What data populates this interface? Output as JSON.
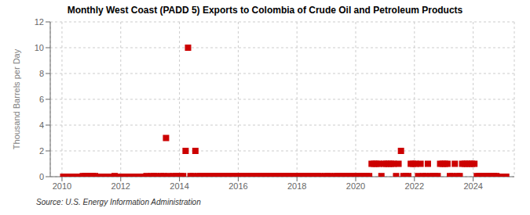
{
  "chart_data": {
    "type": "scatter",
    "title": "Monthly West Coast (PADD 5) Exports to Colombia of Crude Oil and Petroleum Products",
    "ylabel": "Thousand Barrels per Day",
    "annotations": [
      "Source: U.S. Energy Information Administration"
    ],
    "color": "#cc0000",
    "marker": "square",
    "grid": true,
    "xlim": [
      2009.6,
      2025.4
    ],
    "xticks": [
      2010,
      2012,
      2014,
      2016,
      2018,
      2020,
      2022,
      2024
    ],
    "ylim": [
      0,
      12
    ],
    "yticks": [
      0,
      2,
      4,
      6,
      8,
      10,
      12
    ],
    "x": [
      2010.0416666667,
      2010.125,
      2010.2083333333,
      2010.2916666667,
      2010.375,
      2010.4583333333,
      2010.5416666667,
      2010.625,
      2010.7083333333,
      2010.7916666667,
      2010.875,
      2010.9583333333,
      2011.0416666667,
      2011.125,
      2011.2083333333,
      2011.2916666667,
      2011.375,
      2011.4583333333,
      2011.5416666667,
      2011.625,
      2011.7083333333,
      2011.7916666667,
      2011.875,
      2011.9583333333,
      2012.0416666667,
      2012.125,
      2012.2083333333,
      2012.2916666667,
      2012.375,
      2012.4583333333,
      2012.5416666667,
      2012.625,
      2012.7083333333,
      2012.7916666667,
      2012.875,
      2012.9583333333,
      2013.0416666667,
      2013.125,
      2013.2083333333,
      2013.2916666667,
      2013.375,
      2013.4583333333,
      2013.5416666667,
      2013.625,
      2013.7083333333,
      2013.7916666667,
      2013.875,
      2013.9583333333,
      2014.0416666667,
      2014.125,
      2014.2083333333,
      2014.2916666667,
      2014.375,
      2014.4583333333,
      2014.5416666667,
      2014.625,
      2014.7083333333,
      2014.7916666667,
      2014.875,
      2014.9583333333,
      2015.0416666667,
      2015.125,
      2015.2083333333,
      2015.2916666667,
      2015.375,
      2015.4583333333,
      2015.5416666667,
      2015.625,
      2015.7083333333,
      2015.7916666667,
      2015.875,
      2015.9583333333,
      2016.0416666667,
      2016.125,
      2016.2083333333,
      2016.2916666667,
      2016.375,
      2016.4583333333,
      2016.5416666667,
      2016.625,
      2016.7083333333,
      2016.7916666667,
      2016.875,
      2016.9583333333,
      2017.0416666667,
      2017.125,
      2017.2083333333,
      2017.2916666667,
      2017.375,
      2017.4583333333,
      2017.5416666667,
      2017.625,
      2017.7083333333,
      2017.7916666667,
      2017.875,
      2017.9583333333,
      2018.0416666667,
      2018.125,
      2018.2083333333,
      2018.2916666667,
      2018.375,
      2018.4583333333,
      2018.5416666667,
      2018.625,
      2018.7083333333,
      2018.7916666667,
      2018.875,
      2018.9583333333,
      2019.0416666667,
      2019.125,
      2019.2083333333,
      2019.2916666667,
      2019.375,
      2019.4583333333,
      2019.5416666667,
      2019.625,
      2019.7083333333,
      2019.7916666667,
      2019.875,
      2019.9583333333,
      2020.0416666667,
      2020.125,
      2020.2083333333,
      2020.2916666667,
      2020.375,
      2020.4583333333,
      2020.5416666667,
      2020.625,
      2020.7083333333,
      2020.7916666667,
      2020.875,
      2020.9583333333,
      2021.0416666667,
      2021.125,
      2021.2083333333,
      2021.2916666667,
      2021.375,
      2021.4583333333,
      2021.5416666667,
      2021.625,
      2021.7083333333,
      2021.7916666667,
      2021.875,
      2021.9583333333,
      2022.0416666667,
      2022.125,
      2022.2083333333,
      2022.2916666667,
      2022.375,
      2022.4583333333,
      2022.5416666667,
      2022.625,
      2022.7083333333,
      2022.7916666667,
      2022.875,
      2022.9583333333,
      2023.0416666667,
      2023.125,
      2023.2083333333,
      2023.2916666667,
      2023.375,
      2023.4583333333,
      2023.5416666667,
      2023.625,
      2023.7083333333,
      2023.7916666667,
      2023.875,
      2023.9583333333,
      2024.0416666667,
      2024.125,
      2024.2083333333,
      2024.2916666667,
      2024.375,
      2024.4583333333,
      2024.5416666667,
      2024.625,
      2024.7083333333,
      2024.7916666667,
      2024.875,
      2024.9583333333,
      2025.0416666667,
      2025.125
    ],
    "values": [
      0,
      0,
      0,
      0,
      0,
      0,
      0,
      0,
      0.05,
      0.05,
      0.05,
      0.05,
      0.05,
      0.05,
      0,
      0,
      0,
      0,
      0,
      0,
      0,
      0.05,
      0,
      0,
      0,
      0,
      0,
      0,
      0,
      0,
      0,
      0,
      0,
      0,
      0.05,
      0,
      0.05,
      0.05,
      0.05,
      0,
      0.05,
      0.05,
      3,
      0.05,
      0,
      0.05,
      0.05,
      0.05,
      0.05,
      0.05,
      2,
      10,
      0.05,
      0.05,
      2,
      0.05,
      0.05,
      0.05,
      0.05,
      0.05,
      0.05,
      0.05,
      0.05,
      0.05,
      0.05,
      0.05,
      0.05,
      0.05,
      0.05,
      0.05,
      0.05,
      0.05,
      0.05,
      0.05,
      0.05,
      0.05,
      0.05,
      0.05,
      0.05,
      0.05,
      0.05,
      0.05,
      0.05,
      0.05,
      0.05,
      0.05,
      0.05,
      0.05,
      0.05,
      0.05,
      0.05,
      0.05,
      0.05,
      0.05,
      0.05,
      0.05,
      0.05,
      0.05,
      0.05,
      0.05,
      0.05,
      0.05,
      0.05,
      0.05,
      0.05,
      0.05,
      0,
      0.05,
      0.05,
      0.05,
      0,
      0.05,
      0.05,
      0.05,
      0.05,
      0.05,
      0.05,
      0.05,
      0.05,
      0.05,
      0.05,
      0.05,
      0.05,
      0.05,
      0.05,
      0.05,
      1,
      1,
      1,
      1,
      0.05,
      1,
      1,
      1,
      1,
      1,
      0.05,
      1,
      2,
      0.05,
      0.05,
      0.05,
      1,
      1,
      1,
      0.05,
      1,
      0.05,
      0.05,
      1,
      0.05,
      0.05,
      0.05,
      0.05,
      1,
      1,
      1,
      1,
      0.05,
      0.05,
      1,
      0.05,
      0.05,
      1,
      1,
      1,
      1,
      1,
      1,
      0.05,
      0.05,
      0.05,
      0.05,
      0.05,
      0.05,
      0.05,
      0.05,
      0.05,
      0,
      0,
      0,
      0
    ]
  }
}
